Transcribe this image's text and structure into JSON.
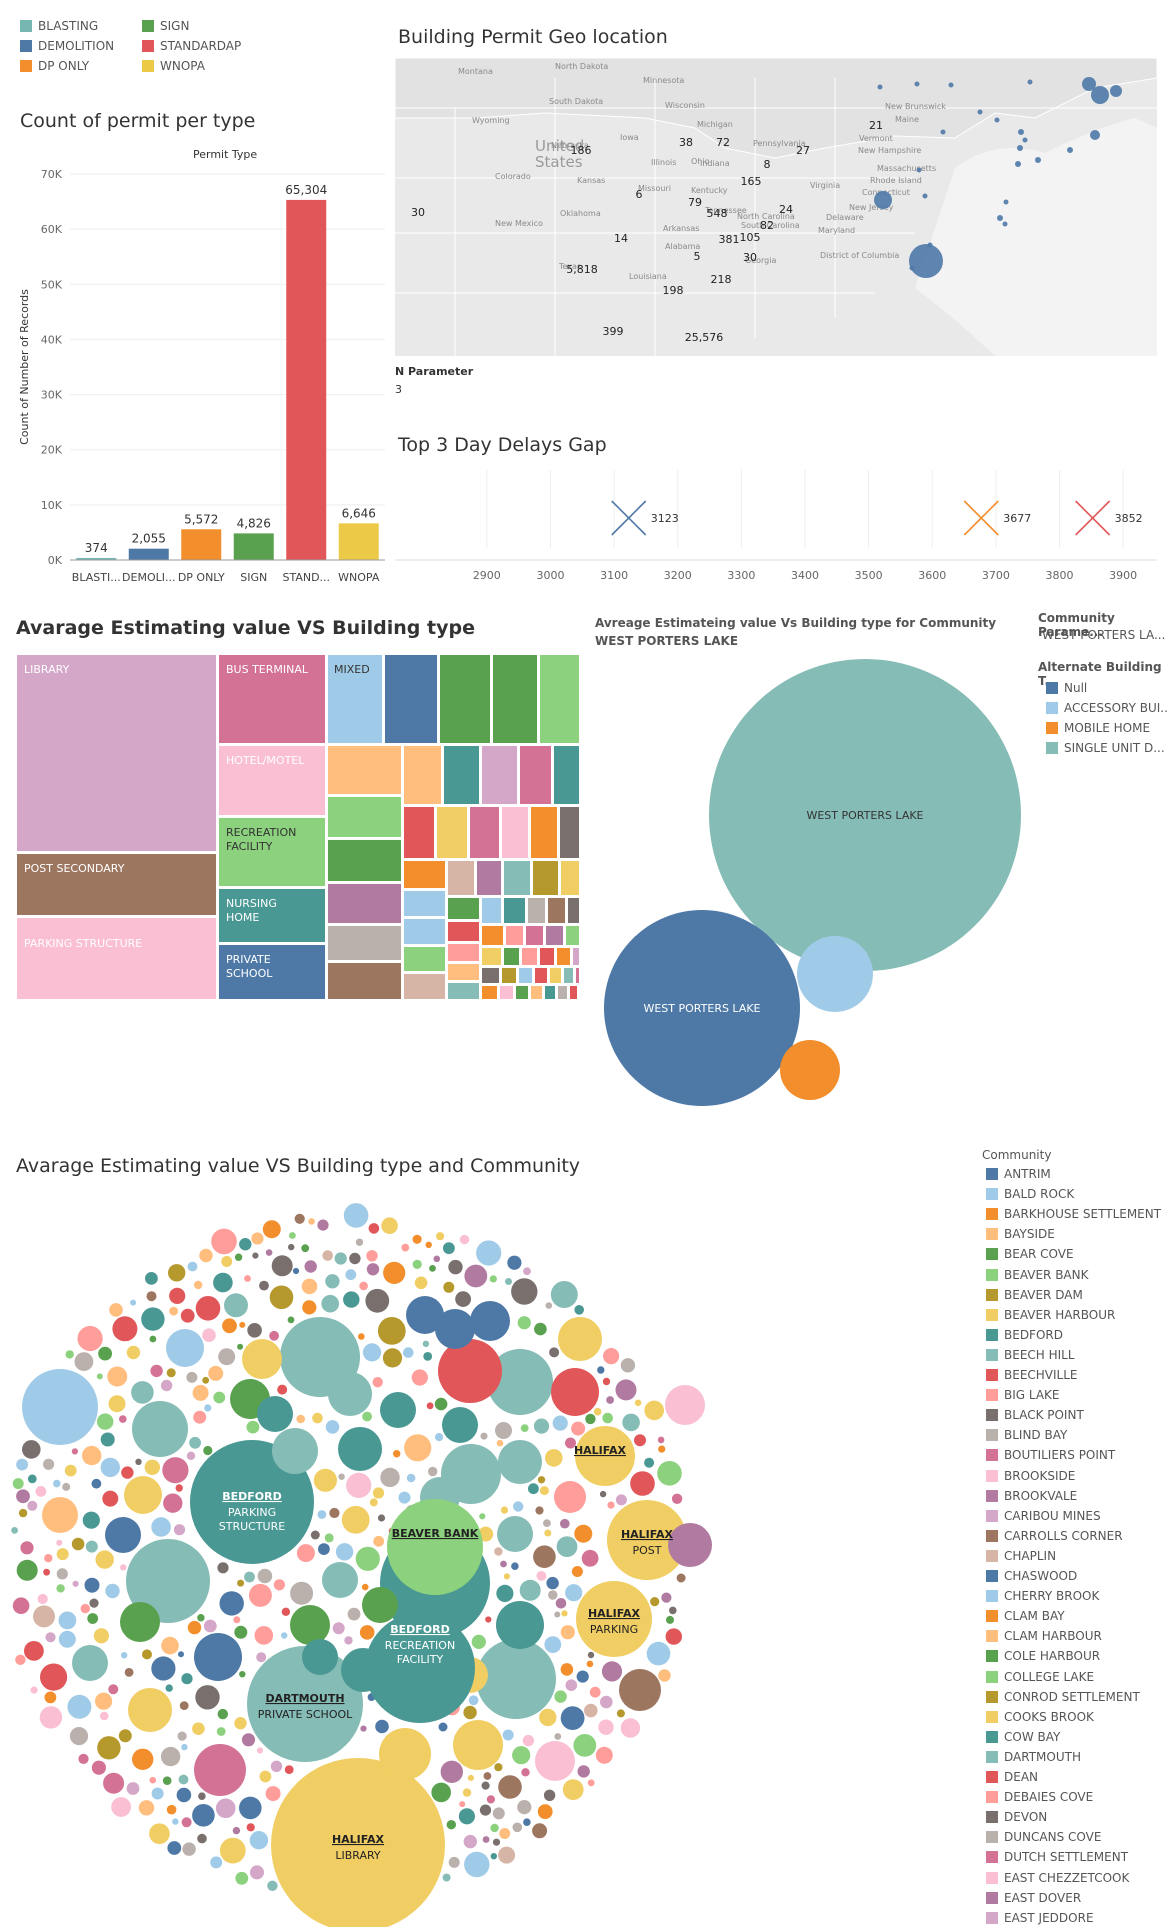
{
  "permit_type_legend": [
    {
      "label": "BLASTING",
      "color": "#76b7b2"
    },
    {
      "label": "SIGN",
      "color": "#59a14f"
    },
    {
      "label": "DEMOLITION",
      "color": "#4e79a7"
    },
    {
      "label": "STANDARDAP",
      "color": "#e15759"
    },
    {
      "label": "DP ONLY",
      "color": "#f28e2b"
    },
    {
      "label": "WNOPA",
      "color": "#edc948"
    }
  ],
  "bar_chart": {
    "title": "Count of permit per type",
    "header": "Permit Type",
    "ylabel": "Count of Number of Records",
    "yticks": [
      "0K",
      "10K",
      "20K",
      "30K",
      "40K",
      "50K",
      "60K",
      "70K"
    ]
  },
  "map": {
    "title": "Building Permit Geo location",
    "place_labels": [
      "North Dakota",
      "Montana",
      "Minnesota",
      "Wisconsin",
      "South Dakota",
      "Wyoming",
      "Michigan",
      "Iowa",
      "Nebraska",
      "Ohio",
      "Illinois",
      "Indiana",
      "Colorado",
      "Kansas",
      "Missouri",
      "Kentucky",
      "Oklahoma",
      "Tennessee",
      "New Mexico",
      "Arkansas",
      "Alabama",
      "Texas",
      "Louisiana",
      "North Carolina",
      "South Carolina",
      "Vermont",
      "New Hampshire",
      "Massachusetts",
      "Rhode Island",
      "Connecticut",
      "New Jersey",
      "Delaware",
      "Maryland",
      "District of Columbia",
      "Maine",
      "New Brunswick",
      "Pennsylvania",
      "Georgia",
      "Virginia"
    ],
    "country_label": "United States",
    "counts": [
      "186",
      "38",
      "72",
      "27",
      "21",
      "8",
      "165",
      "6",
      "30",
      "79",
      "548",
      "24",
      "14",
      "381",
      "105",
      "82",
      "5,818",
      "5",
      "30",
      "218",
      "198",
      "399",
      "25,576"
    ],
    "parameter_label": "N Parameter",
    "parameter_value": "3"
  },
  "gap_chart": {
    "title": "Top 3 Day Delays Gap",
    "xticks": [
      "2900",
      "3000",
      "3100",
      "3200",
      "3300",
      "3400",
      "3500",
      "3600",
      "3700",
      "3800",
      "3900"
    ],
    "markers": [
      "3123",
      "3677",
      "3852"
    ]
  },
  "treemap": {
    "title": "Avarage Estimating value VS Building type",
    "labels": [
      "LIBRARY",
      "POST SECONDARY",
      "PARKING STRUCTURE",
      "BUS TERMINAL",
      "HOTEL/MOTEL",
      "RECREATION FACILITY",
      "NURSING HOME",
      "PRIVATE SCHOOL",
      "MIXED"
    ]
  },
  "community_bubbles": {
    "title": "Avreage Estimateing value Vs Building type for Community WEST PORTERS LAKE",
    "labels": [
      "WEST PORTERS LAKE",
      "WEST PORTERS LAKE"
    ],
    "param_label": "Community Parame...",
    "param_value": "WEST PORTERS LA...",
    "legend_title": "Alternate Building T...",
    "legend": [
      {
        "label": "Null",
        "color": "#4e79a7"
      },
      {
        "label": "ACCESSORY BUI...",
        "color": "#a0cbe8"
      },
      {
        "label": "MOBILE HOME",
        "color": "#f28e2b"
      },
      {
        "label": "SINGLE UNIT D...",
        "color": "#86bcb6"
      }
    ]
  },
  "packed_bubbles": {
    "title": "Avarage Estimating value VS Building type and Community",
    "labels": [
      {
        "community": "BEDFORD",
        "type": "PARKING STRUCTURE"
      },
      {
        "community": "BEAVER BANK",
        "type": ""
      },
      {
        "community": "BEDFORD",
        "type": "RECREATION FACILITY"
      },
      {
        "community": "DARTMOUTH",
        "type": "PRIVATE SCHOOL"
      },
      {
        "community": "HALIFAX",
        "type": "LIBRARY"
      },
      {
        "community": "HALIFAX",
        "type": ""
      },
      {
        "community": "HALIFAX",
        "type": "POST"
      },
      {
        "community": "HALIFAX",
        "type": "PARKING"
      }
    ]
  },
  "community_legend": {
    "title": "Community",
    "items": [
      {
        "label": "ANTRIM",
        "color": "#4e79a7"
      },
      {
        "label": "BALD ROCK",
        "color": "#a0cbe8"
      },
      {
        "label": "BARKHOUSE SETTLEMENT",
        "color": "#f28e2b"
      },
      {
        "label": "BAYSIDE",
        "color": "#ffbe7d"
      },
      {
        "label": "BEAR COVE",
        "color": "#59a14f"
      },
      {
        "label": "BEAVER BANK",
        "color": "#8cd17d"
      },
      {
        "label": "BEAVER DAM",
        "color": "#b6992d"
      },
      {
        "label": "BEAVER HARBOUR",
        "color": "#f1ce63"
      },
      {
        "label": "BEDFORD",
        "color": "#499894"
      },
      {
        "label": "BEECH HILL",
        "color": "#86bcb6"
      },
      {
        "label": "BEECHVILLE",
        "color": "#e15759"
      },
      {
        "label": "BIG LAKE",
        "color": "#ff9d9a"
      },
      {
        "label": "BLACK POINT",
        "color": "#79706e"
      },
      {
        "label": "BLIND BAY",
        "color": "#bab0ac"
      },
      {
        "label": "BOUTILIERS POINT",
        "color": "#d37295"
      },
      {
        "label": "BROOKSIDE",
        "color": "#fabfd2"
      },
      {
        "label": "BROOKVALE",
        "color": "#b07aa1"
      },
      {
        "label": "CARIBOU MINES",
        "color": "#d4a6c8"
      },
      {
        "label": "CARROLLS CORNER",
        "color": "#9d7660"
      },
      {
        "label": "CHAPLIN",
        "color": "#d7b5a6"
      },
      {
        "label": "CHASWOOD",
        "color": "#4e79a7"
      },
      {
        "label": "CHERRY BROOK",
        "color": "#a0cbe8"
      },
      {
        "label": "CLAM BAY",
        "color": "#f28e2b"
      },
      {
        "label": "CLAM HARBOUR",
        "color": "#ffbe7d"
      },
      {
        "label": "COLE HARBOUR",
        "color": "#59a14f"
      },
      {
        "label": "COLLEGE LAKE",
        "color": "#8cd17d"
      },
      {
        "label": "CONROD SETTLEMENT",
        "color": "#b6992d"
      },
      {
        "label": "COOKS BROOK",
        "color": "#f1ce63"
      },
      {
        "label": "COW BAY",
        "color": "#499894"
      },
      {
        "label": "DARTMOUTH",
        "color": "#86bcb6"
      },
      {
        "label": "DEAN",
        "color": "#e15759"
      },
      {
        "label": "DEBAIES COVE",
        "color": "#ff9d9a"
      },
      {
        "label": "DEVON",
        "color": "#79706e"
      },
      {
        "label": "DUNCANS COVE",
        "color": "#bab0ac"
      },
      {
        "label": "DUTCH SETTLEMENT",
        "color": "#d37295"
      },
      {
        "label": "EAST CHEZZETCOOK",
        "color": "#fabfd2"
      },
      {
        "label": "EAST DOVER",
        "color": "#b07aa1"
      },
      {
        "label": "EAST JEDDORE",
        "color": "#d4a6c8"
      }
    ]
  },
  "chart_data": [
    {
      "type": "bar",
      "title": "Count of permit per type",
      "categories": [
        "BLASTI...",
        "DEMOLI...",
        "DP ONLY",
        "SIGN",
        "STAND...",
        "WNOPA"
      ],
      "values": [
        374,
        2055,
        5572,
        4826,
        65304,
        6646
      ],
      "value_labels": [
        "374",
        "2,055",
        "5,572",
        "4,826",
        "65,304",
        "6,646"
      ],
      "colors": [
        "#76b7b2",
        "#4e79a7",
        "#f28e2b",
        "#59a14f",
        "#e15759",
        "#edc948"
      ],
      "ylabel": "Count of Number of Records",
      "ylim": [
        0,
        70000
      ]
    },
    {
      "type": "scatter",
      "title": "Top 3 Day Delays Gap",
      "x": [
        3123,
        3677,
        3852
      ],
      "colors": [
        "#4e79a7",
        "#f28e2b",
        "#e15759"
      ],
      "xlim": [
        2850,
        3950
      ]
    }
  ]
}
